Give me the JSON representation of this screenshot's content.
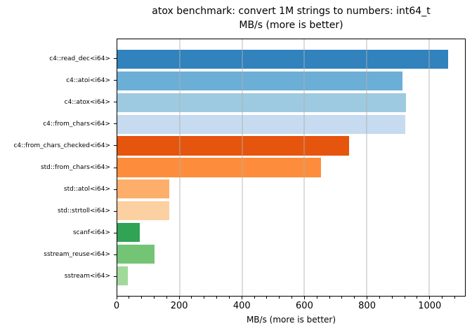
{
  "title": {
    "line1": "atox benchmark: convert 1M strings to numbers: int64_t",
    "line2": "MB/s (more is better)"
  },
  "chart_data": {
    "type": "bar",
    "orientation": "horizontal",
    "title": "atox benchmark: convert 1M strings to numbers: int64_t\nMB/s (more is better)",
    "xlabel": "MB/s (more is better)",
    "ylabel": "",
    "categories": [
      "c4::read_dec<i64>",
      "c4::atoi<i64>",
      "c4::atox<i64>",
      "c4::from_chars<i64>",
      "c4::from_chars_checked<i64>",
      "std::from_chars<i64>",
      "std::atol<i64>",
      "std::strtoll<i64>",
      "scanf<i64>",
      "sstream_reuse<i64>",
      "sstream<i64>"
    ],
    "values": [
      1061,
      915,
      926,
      923,
      744,
      653,
      167,
      166,
      72,
      120,
      33
    ],
    "bar_colors": [
      "#3182bd",
      "#6baed6",
      "#9ecae1",
      "#c6dbef",
      "#e6550d",
      "#fd8d3c",
      "#fdae6b",
      "#fdd0a2",
      "#31a354",
      "#74c476",
      "#a1d99b"
    ],
    "xlim": [
      0,
      1115
    ],
    "xticks": [
      0,
      200,
      400,
      600,
      800,
      1000
    ],
    "minor_tick_step": 40,
    "grid": "vertical major gridlines, drawn above bars",
    "gridline_color": "#b0b0b0",
    "legend": "none"
  }
}
